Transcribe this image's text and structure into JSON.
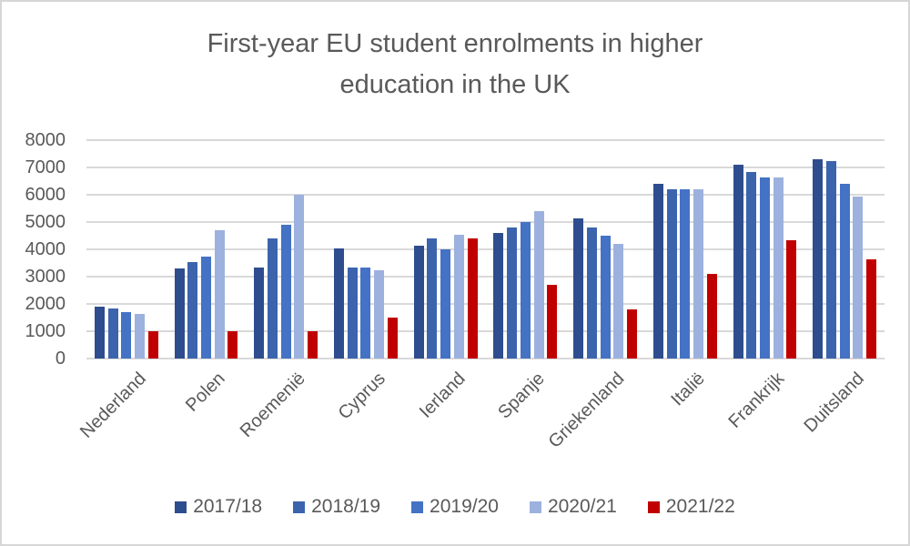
{
  "chart": {
    "title_lines": [
      "First-year EU student enrolments in higher",
      "education in the UK"
    ],
    "title_color": "#595959",
    "axis_text_color": "#595959",
    "gridline_color": "#d9d9d9",
    "frame_border_color": "#d6d6d6",
    "background_color": "#ffffff"
  },
  "chart_data": {
    "type": "bar",
    "title": "First-year EU student enrolments in higher education in the UK",
    "xlabel": "",
    "ylabel": "",
    "ylim": [
      0,
      8000
    ],
    "y_tick_step": 1000,
    "y_tick_labels": [
      "0",
      "1000",
      "2000",
      "3000",
      "4000",
      "5000",
      "6000",
      "7000",
      "8000"
    ],
    "grid": true,
    "legend_position": "bottom",
    "categories": [
      "Nederland",
      "Polen",
      "Roemenië",
      "Cyprus",
      "Ierland",
      "Spanje",
      "Griekenland",
      "Italië",
      "Frankrijk",
      "Duitsland"
    ],
    "series": [
      {
        "name": "2017/18",
        "color": "#2e4d8e",
        "values": [
          1900,
          3300,
          3350,
          4050,
          4150,
          4600,
          5150,
          6400,
          7100,
          7300
        ]
      },
      {
        "name": "2018/19",
        "color": "#3c64ad",
        "values": [
          1850,
          3550,
          4400,
          3350,
          4400,
          4800,
          4800,
          6200,
          6850,
          7250
        ]
      },
      {
        "name": "2019/20",
        "color": "#4472c4",
        "values": [
          1700,
          3750,
          4900,
          3350,
          4000,
          5000,
          4500,
          6200,
          6650,
          6400
        ]
      },
      {
        "name": "2020/21",
        "color": "#9db1de",
        "values": [
          1650,
          4700,
          6000,
          3250,
          4550,
          5400,
          4200,
          6200,
          6650,
          5950
        ]
      },
      {
        "name": "2021/22",
        "color": "#c00000",
        "values": [
          1000,
          1000,
          1000,
          1500,
          4400,
          2700,
          1800,
          3100,
          4350,
          3650
        ]
      }
    ]
  }
}
